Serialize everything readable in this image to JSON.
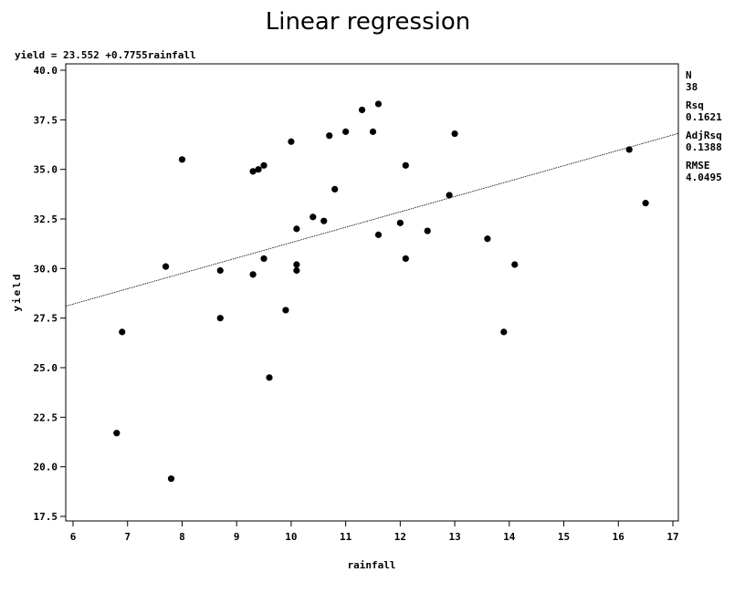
{
  "chart_data": {
    "type": "scatter",
    "title": "Linear regression",
    "equation": "yield = 23.552 +0.7755rainfall",
    "xlabel": "rainfall",
    "ylabel": "yield",
    "xlim": [
      6,
      17
    ],
    "ylim": [
      17.5,
      40
    ],
    "xticks": [
      6,
      7,
      8,
      9,
      10,
      11,
      12,
      13,
      14,
      15,
      16,
      17
    ],
    "yticks": [
      "17.5",
      "20.0",
      "22.5",
      "25.0",
      "27.5",
      "30.0",
      "32.5",
      "35.0",
      "37.5",
      "40.0"
    ],
    "regression": {
      "intercept": 23.552,
      "slope": 0.7755
    },
    "stats": [
      {
        "label": "N",
        "value": "38"
      },
      {
        "label": "Rsq",
        "value": "0.1621"
      },
      {
        "label": "AdjRsq",
        "value": "0.1388"
      },
      {
        "label": "RMSE",
        "value": "4.0495"
      }
    ],
    "points": [
      [
        6.8,
        21.7
      ],
      [
        6.9,
        26.8
      ],
      [
        7.7,
        30.1
      ],
      [
        7.8,
        19.4
      ],
      [
        8.0,
        35.5
      ],
      [
        8.7,
        29.9
      ],
      [
        8.7,
        27.5
      ],
      [
        9.3,
        34.9
      ],
      [
        9.3,
        29.7
      ],
      [
        9.4,
        35.0
      ],
      [
        9.5,
        35.2
      ],
      [
        9.5,
        30.5
      ],
      [
        9.6,
        24.5
      ],
      [
        9.9,
        27.9
      ],
      [
        10.0,
        36.4
      ],
      [
        10.1,
        32.0
      ],
      [
        10.1,
        30.2
      ],
      [
        10.1,
        29.9
      ],
      [
        10.4,
        32.6
      ],
      [
        10.6,
        32.4
      ],
      [
        10.7,
        36.7
      ],
      [
        10.8,
        34.0
      ],
      [
        11.0,
        36.9
      ],
      [
        11.3,
        38.0
      ],
      [
        11.5,
        36.9
      ],
      [
        11.6,
        38.3
      ],
      [
        11.6,
        31.7
      ],
      [
        12.0,
        32.3
      ],
      [
        12.1,
        35.2
      ],
      [
        12.1,
        30.5
      ],
      [
        12.5,
        31.9
      ],
      [
        12.9,
        33.7
      ],
      [
        13.0,
        36.8
      ],
      [
        13.6,
        31.5
      ],
      [
        13.9,
        26.8
      ],
      [
        14.1,
        30.2
      ],
      [
        16.2,
        36.0
      ],
      [
        16.5,
        33.3
      ]
    ],
    "grid": false,
    "legend": "none"
  }
}
